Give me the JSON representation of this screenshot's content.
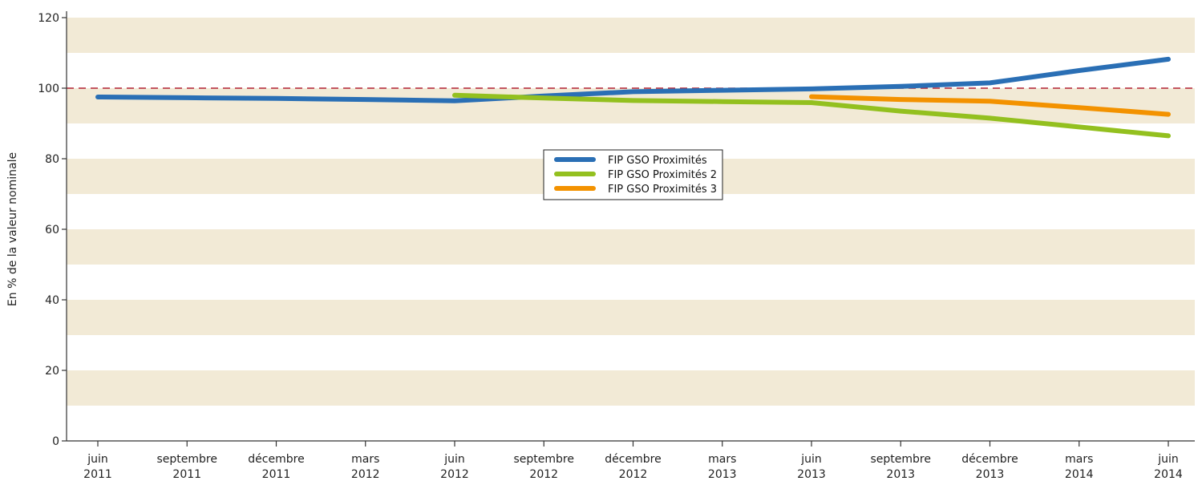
{
  "chart_data": {
    "type": "line",
    "title": "",
    "xlabel": "",
    "ylabel": "En % de la valeur nominale",
    "ylim": [
      0,
      120
    ],
    "yticks": [
      "0",
      "20",
      "40",
      "60",
      "80",
      "100",
      "120"
    ],
    "reference_line": {
      "value": 100,
      "style": "dashed",
      "color": "#b22234"
    },
    "bands": {
      "color": "#f2ead6",
      "ranges": [
        [
          10,
          20
        ],
        [
          30,
          40
        ],
        [
          50,
          60
        ],
        [
          70,
          80
        ],
        [
          90,
          100
        ],
        [
          110,
          120
        ]
      ]
    },
    "categories": [
      [
        "juin",
        "2011"
      ],
      [
        "septembre",
        "2011"
      ],
      [
        "décembre",
        "2011"
      ],
      [
        "mars",
        "2012"
      ],
      [
        "juin",
        "2012"
      ],
      [
        "septembre",
        "2012"
      ],
      [
        "décembre",
        "2012"
      ],
      [
        "mars",
        "2013"
      ],
      [
        "juin",
        "2013"
      ],
      [
        "septembre",
        "2013"
      ],
      [
        "décembre",
        "2013"
      ],
      [
        "mars",
        "2014"
      ],
      [
        "juin",
        "2014"
      ]
    ],
    "series": [
      {
        "name": "FIP GSO Proximités",
        "color": "#2a6fb5",
        "values": [
          97.5,
          97.3,
          97.1,
          96.8,
          96.4,
          97.8,
          99.0,
          99.4,
          99.8,
          100.5,
          101.5,
          105.0,
          108.2
        ]
      },
      {
        "name": "FIP GSO Proximités 2",
        "color": "#93c01f",
        "values": [
          null,
          null,
          null,
          null,
          98.0,
          97.2,
          96.5,
          96.2,
          95.9,
          93.5,
          91.5,
          89.0,
          86.5
        ]
      },
      {
        "name": "FIP GSO Proximités 3",
        "color": "#f39200",
        "values": [
          null,
          null,
          null,
          null,
          null,
          null,
          null,
          null,
          97.6,
          96.8,
          96.3,
          94.5,
          92.6
        ]
      }
    ],
    "legend_position": "center",
    "grid": false
  }
}
